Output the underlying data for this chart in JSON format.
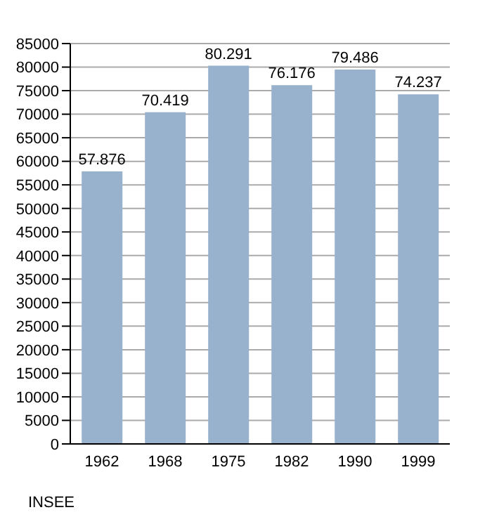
{
  "chart_data": {
    "type": "bar",
    "categories": [
      "1962",
      "1968",
      "1975",
      "1982",
      "1990",
      "1999"
    ],
    "values": [
      57876,
      70419,
      80291,
      76176,
      79486,
      74237
    ],
    "value_labels": [
      "57.876",
      "70.419",
      "80.291",
      "76.176",
      "79.486",
      "74.237"
    ],
    "color": "#98b1cc",
    "ylim": [
      0,
      85000
    ],
    "yticks": [
      0,
      5000,
      10000,
      15000,
      20000,
      25000,
      30000,
      35000,
      40000,
      45000,
      50000,
      55000,
      60000,
      65000,
      70000,
      75000,
      80000,
      85000
    ],
    "grid": "y",
    "annotations": [
      "INSEE"
    ]
  }
}
